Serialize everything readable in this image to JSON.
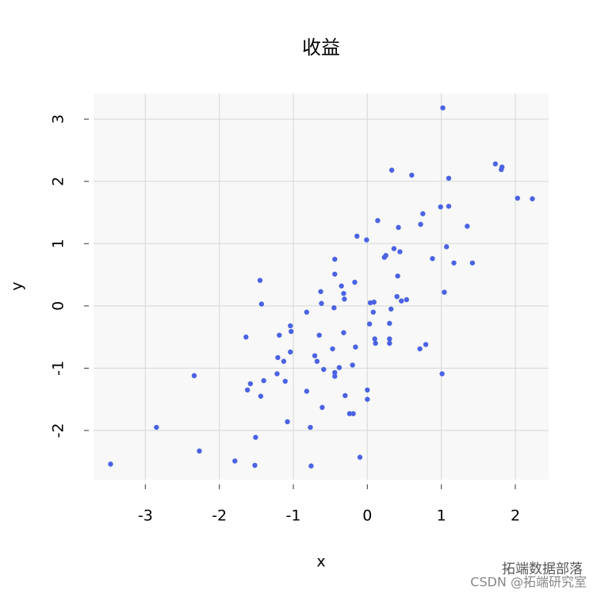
{
  "chart_data": {
    "type": "scatter",
    "title": "收益",
    "x_label": "x",
    "y_label": "y",
    "x": [
      -3.47,
      -2.85,
      -2.34,
      -2.27,
      -1.79,
      -1.52,
      -1.64,
      -1.62,
      -1.58,
      -1.51,
      -1.45,
      -1.43,
      -1.44,
      -1.4,
      -1.21,
      -1.22,
      -1.19,
      -1.13,
      -1.11,
      -1.08,
      -1.04,
      -1.03,
      -1.04,
      -0.82,
      -0.82,
      -0.77,
      -0.76,
      -0.71,
      -0.68,
      -0.65,
      -0.63,
      -0.62,
      -0.61,
      -0.59,
      -0.47,
      -0.45,
      -0.44,
      -0.44,
      -0.44,
      -0.44,
      -0.38,
      -0.35,
      -0.32,
      -0.32,
      -0.31,
      -0.3,
      -0.24,
      -0.19,
      -0.2,
      -0.17,
      -0.16,
      -0.14,
      -0.1,
      -0.01,
      0.0,
      0.0,
      0.03,
      0.04,
      0.08,
      0.09,
      0.1,
      0.11,
      0.14,
      0.23,
      0.25,
      0.3,
      0.3,
      0.3,
      0.32,
      0.33,
      0.36,
      0.4,
      0.41,
      0.42,
      0.44,
      0.46,
      0.53,
      0.6,
      0.71,
      0.72,
      0.75,
      0.79,
      0.88,
      0.99,
      1.01,
      1.02,
      1.04,
      1.07,
      1.1,
      1.1,
      1.17,
      1.35,
      1.42,
      1.73,
      1.81,
      1.82,
      2.03,
      2.23
    ],
    "values": [
      -2.54,
      -1.95,
      -1.12,
      -2.33,
      -2.49,
      -2.56,
      -0.5,
      -1.35,
      -1.25,
      -2.11,
      0.41,
      0.03,
      -1.45,
      -1.2,
      -0.83,
      -1.09,
      -0.47,
      -0.89,
      -1.21,
      -1.86,
      -0.32,
      -0.41,
      -0.74,
      -0.1,
      -1.37,
      -1.95,
      -2.57,
      -0.8,
      -0.89,
      -0.47,
      0.23,
      0.04,
      -1.63,
      -1.02,
      -0.69,
      -0.03,
      0.51,
      0.75,
      -1.13,
      -1.07,
      -0.99,
      0.32,
      -0.43,
      0.2,
      0.11,
      -1.44,
      -1.73,
      -1.73,
      -0.95,
      0.38,
      -0.66,
      1.12,
      -2.43,
      1.06,
      -1.5,
      -1.35,
      -0.29,
      0.05,
      -0.1,
      0.06,
      -0.53,
      -0.6,
      1.37,
      0.78,
      0.81,
      -0.6,
      -0.53,
      -0.28,
      -0.05,
      2.18,
      0.92,
      0.15,
      0.48,
      1.26,
      0.87,
      0.08,
      0.1,
      2.1,
      -0.69,
      1.31,
      1.48,
      -0.62,
      0.76,
      1.59,
      -1.09,
      3.18,
      0.22,
      0.95,
      1.6,
      2.05,
      0.69,
      1.28,
      0.69,
      2.28,
      2.19,
      2.23,
      1.73,
      1.72
    ],
    "color": "#4b63e3",
    "xlim": [
      -3.7,
      2.45
    ],
    "ylim": [
      -2.79,
      3.41
    ],
    "xticks": [
      -3,
      -2,
      -1,
      0,
      1,
      2
    ],
    "yticks": [
      -2,
      -1,
      0,
      1,
      2,
      3
    ],
    "grid": true
  },
  "watermark": {
    "account": "拓端数据部落",
    "source": "CSDN @拓端研究室"
  }
}
